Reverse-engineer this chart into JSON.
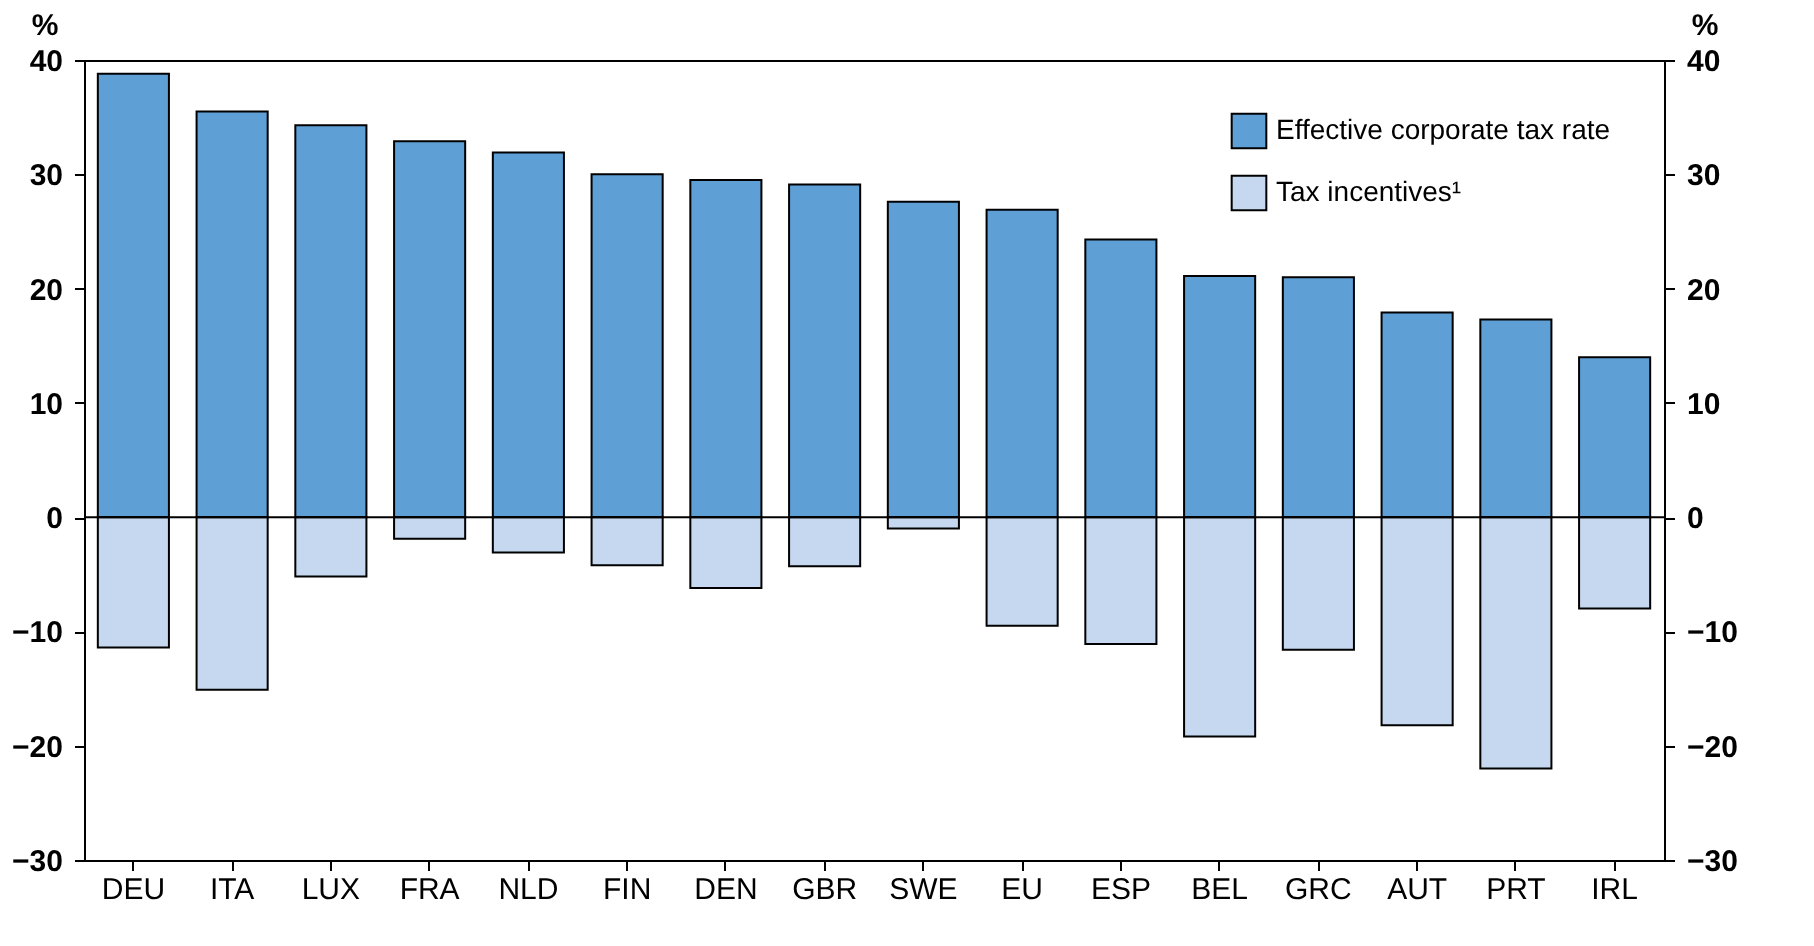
{
  "chart_data": {
    "type": "bar",
    "categories": [
      "DEU",
      "ITA",
      "LUX",
      "FRA",
      "NLD",
      "FIN",
      "DEN",
      "GBR",
      "SWE",
      "EU",
      "ESP",
      "BEL",
      "GRC",
      "AUT",
      "PRT",
      "IRL"
    ],
    "series": [
      {
        "name": "Effective corporate tax rate",
        "color": "#5e9fd6",
        "values": [
          38.8,
          35.5,
          34.3,
          32.9,
          31.9,
          30.0,
          29.5,
          29.1,
          27.6,
          26.9,
          24.3,
          21.1,
          21.0,
          17.9,
          17.3,
          14.0
        ]
      },
      {
        "name": "Tax incentives¹",
        "color": "#c5d8ef",
        "values": [
          -11.4,
          -15.1,
          -5.2,
          -1.9,
          -3.1,
          -4.2,
          -6.2,
          -4.3,
          -1.0,
          -9.5,
          -11.1,
          -19.2,
          -11.6,
          -18.2,
          -22.0,
          -8.0
        ]
      }
    ],
    "ylabel": "%",
    "y2label": "%",
    "ylim": [
      -30,
      40
    ],
    "yticks": [
      -30,
      -20,
      -10,
      0,
      10,
      20,
      30,
      40
    ],
    "y2lim": [
      -30,
      40
    ],
    "y2ticks": [
      -30,
      -20,
      -10,
      0,
      10,
      20,
      30,
      40
    ],
    "stacked": true,
    "grid": false,
    "legend": "top right",
    "ref_lines": [
      {
        "axis": "y",
        "value": 0,
        "color": "#000000",
        "line_style": "solid"
      }
    ]
  }
}
